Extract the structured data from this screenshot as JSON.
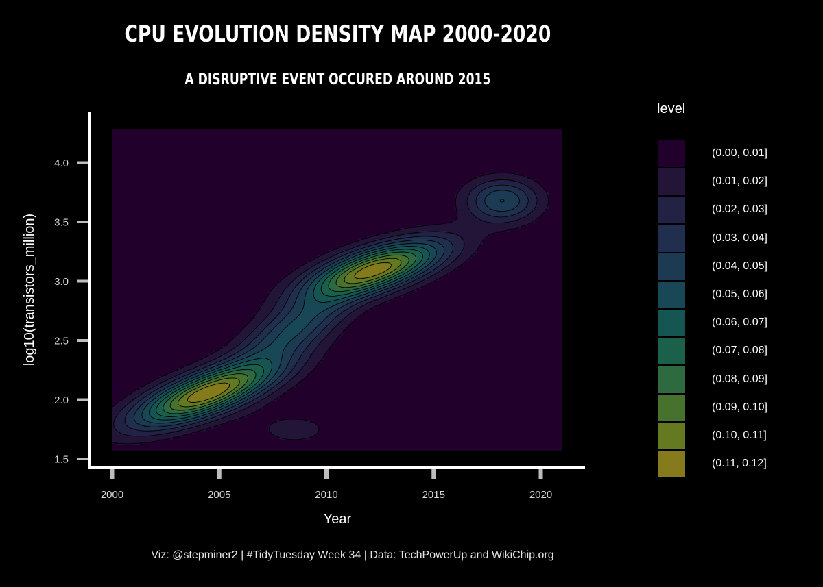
{
  "title": "CPU EVOLUTION DENSITY MAP 2000-2020",
  "subtitle": "A DISRUPTIVE EVENT OCCURED AROUND 2015",
  "caption": "Viz: @stepminer2 | #TidyTuesday Week 34 | Data: TechPowerUp and WikiChip.org",
  "colors": {
    "background": "#000000",
    "axis_line": "#ffffff",
    "tick": "#bdbdbd",
    "contour_line": "#000000"
  },
  "chart_data": {
    "type": "heatmap",
    "title": "CPU EVOLUTION DENSITY MAP 2000-2020",
    "subtitle": "A DISRUPTIVE EVENT OCCURED AROUND 2015",
    "xlabel": "Year",
    "ylabel": "log10(transistors_million)",
    "xlim": [
      2000,
      2021
    ],
    "ylim": [
      1.57,
      4.28
    ],
    "axis_range": {
      "x": [
        1999,
        2022
      ],
      "y": [
        1.5,
        4.45
      ]
    },
    "x_ticks": [
      2000,
      2005,
      2010,
      2015,
      2020
    ],
    "y_ticks": [
      1.5,
      2.0,
      2.5,
      3.0,
      3.5,
      4.0
    ],
    "x_tick_labels": [
      "2000",
      "2005",
      "2010",
      "2015",
      "2020"
    ],
    "y_tick_labels": [
      "1.5",
      "2.0",
      "2.5",
      "3.0",
      "3.5",
      "4.0"
    ],
    "grid": false,
    "legend_title": "level",
    "legend_position": "right",
    "density_peaks": [
      {
        "x": 2004.3,
        "y": 2.05,
        "level": "(0.11, 0.12]"
      },
      {
        "x": 2012.4,
        "y": 3.1,
        "level": "(0.11, 0.12]"
      },
      {
        "x": 2018.2,
        "y": 3.68,
        "level": "(0.04, 0.05]"
      }
    ],
    "levels": [
      {
        "label": "(0.00, 0.01]",
        "color": "#21002c"
      },
      {
        "label": "(0.01, 0.02]",
        "color": "#231537"
      },
      {
        "label": "(0.02, 0.03]",
        "color": "#222244"
      },
      {
        "label": "(0.03, 0.04]",
        "color": "#1f2f4d"
      },
      {
        "label": "(0.04, 0.05]",
        "color": "#1c3b52"
      },
      {
        "label": "(0.05, 0.06]",
        "color": "#184855"
      },
      {
        "label": "(0.06, 0.07]",
        "color": "#155552"
      },
      {
        "label": "(0.07, 0.08]",
        "color": "#1b604b"
      },
      {
        "label": "(0.08, 0.09]",
        "color": "#2e6a3f"
      },
      {
        "label": "(0.09, 0.10]",
        "color": "#47722e"
      },
      {
        "label": "(0.10, 0.11]",
        "color": "#657920"
      },
      {
        "label": "(0.11, 0.12]",
        "color": "#857b1c"
      }
    ]
  }
}
